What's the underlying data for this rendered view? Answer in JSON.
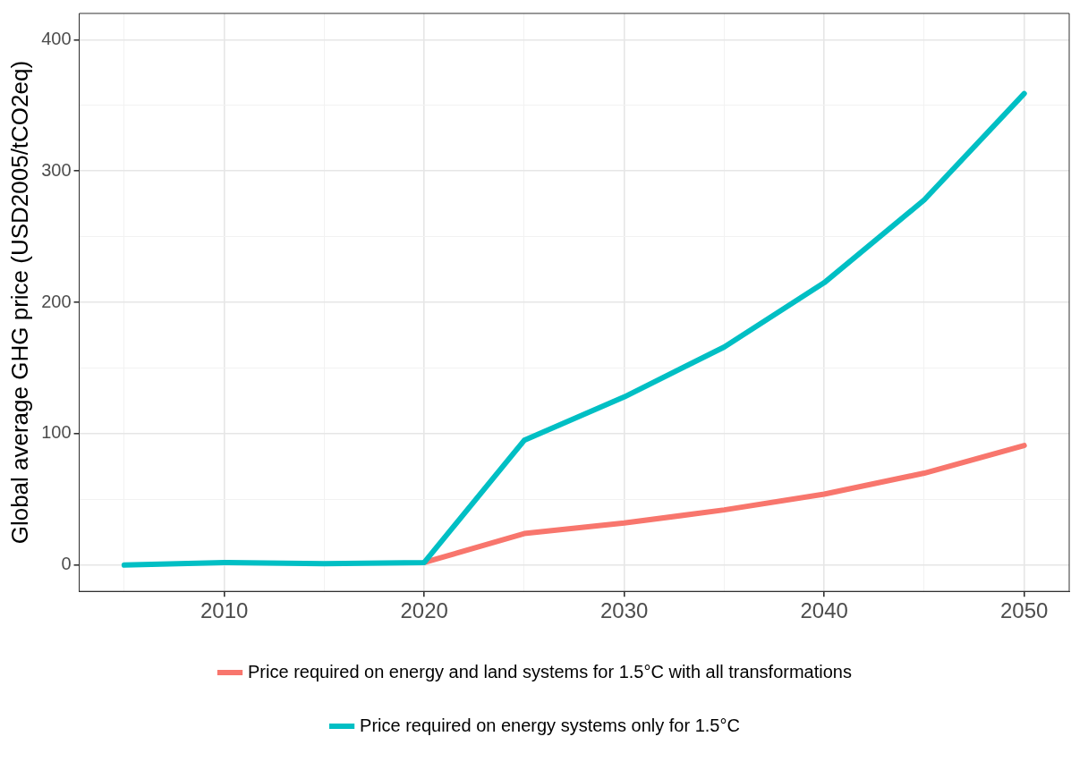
{
  "chart_data": {
    "type": "line",
    "ylabel": "Global average GHG price (USD2005/tCO2eq)",
    "x": [
      2005,
      2010,
      2015,
      2020,
      2025,
      2030,
      2035,
      2040,
      2045,
      2050
    ],
    "series": [
      {
        "name": "Price required on energy and land systems for 1.5°C with all transformations",
        "color": "#f8766d",
        "values": [
          null,
          null,
          null,
          2,
          24,
          32,
          42,
          54,
          70,
          91
        ]
      },
      {
        "name": "Price required on energy systems only for 1.5°C",
        "color": "#00bfc4",
        "values": [
          0,
          2,
          1,
          2,
          95,
          128,
          166,
          215,
          278,
          359
        ]
      }
    ],
    "xlim": [
      2002.75,
      2052.25
    ],
    "xticks": [
      {
        "value": 2005,
        "label": null
      },
      2010,
      {
        "value": 2015,
        "label": null
      },
      2020,
      {
        "value": 2025,
        "label": null
      },
      2030,
      {
        "value": 2035,
        "label": null
      },
      2040,
      {
        "value": 2045,
        "label": null
      },
      2050
    ],
    "ylim": [
      -20,
      420
    ],
    "yticks": [
      0,
      {
        "value": 50,
        "label": null
      },
      100,
      {
        "value": 150,
        "label": null
      },
      200,
      {
        "value": 250,
        "label": null
      },
      300,
      {
        "value": 350,
        "label": null
      },
      400
    ],
    "grid": true,
    "legend": "bottom",
    "marker": "none",
    "line_style": "solid"
  }
}
